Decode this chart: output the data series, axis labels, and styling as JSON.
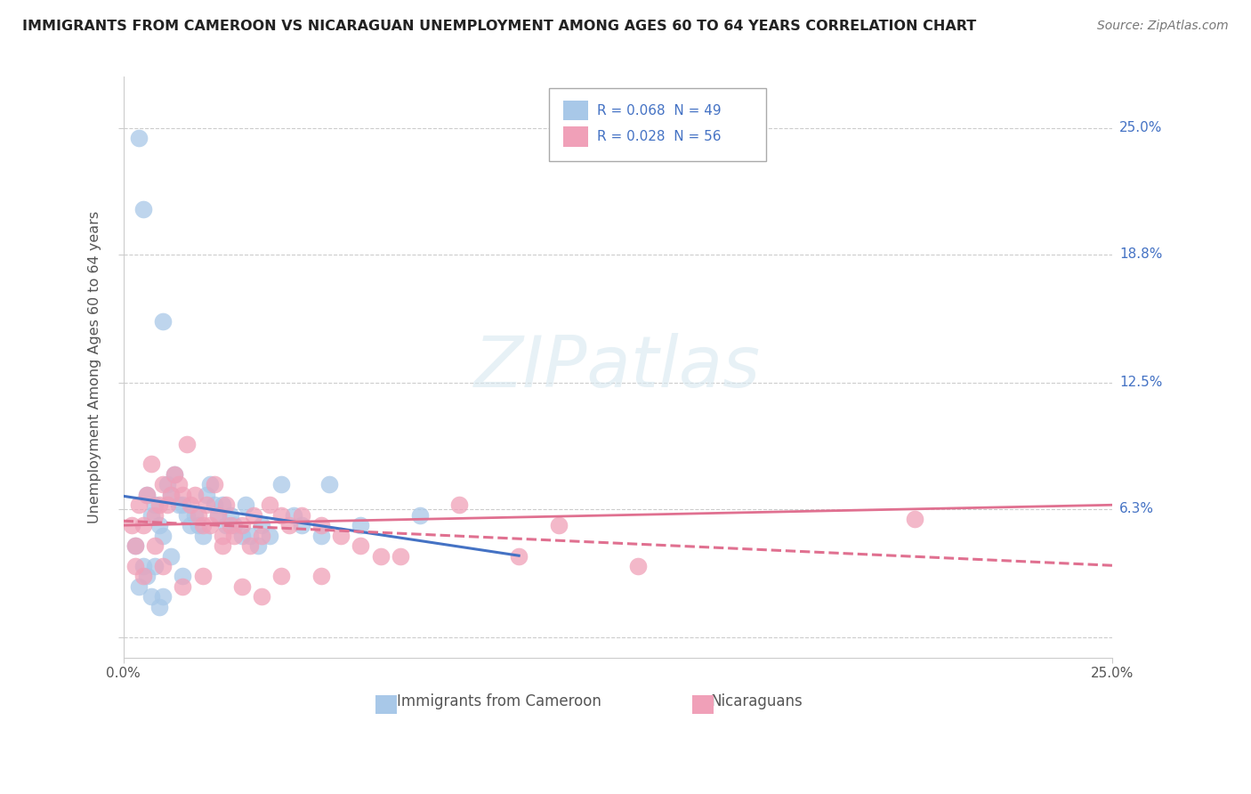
{
  "title": "IMMIGRANTS FROM CAMEROON VS NICARAGUAN UNEMPLOYMENT AMONG AGES 60 TO 64 YEARS CORRELATION CHART",
  "source": "Source: ZipAtlas.com",
  "ylabel": "Unemployment Among Ages 60 to 64 years",
  "ytick_values": [
    0,
    6.3,
    12.5,
    18.8,
    25.0
  ],
  "xlim": [
    0.0,
    25.0
  ],
  "ylim": [
    -1.0,
    27.5
  ],
  "legend_r1": "R = 0.068  N = 49",
  "legend_r2": "R = 0.028  N = 56",
  "color_blue": "#a8c8e8",
  "color_pink": "#f0a0b8",
  "line_blue": "#4472c4",
  "line_pink": "#e07090",
  "watermark": "ZIPatlas",
  "cameroon_x": [
    0.4,
    0.5,
    0.6,
    0.7,
    0.8,
    0.9,
    1.0,
    1.0,
    1.1,
    1.2,
    1.3,
    1.4,
    1.5,
    1.6,
    1.7,
    1.8,
    1.9,
    2.0,
    2.1,
    2.2,
    2.3,
    2.4,
    2.5,
    2.6,
    2.7,
    2.8,
    3.0,
    3.1,
    3.2,
    3.4,
    3.5,
    3.7,
    4.0,
    4.3,
    4.5,
    5.0,
    5.2,
    6.0,
    7.5,
    0.3,
    0.4,
    0.5,
    0.6,
    0.7,
    0.8,
    0.9,
    1.0,
    1.2,
    1.5
  ],
  "cameroon_y": [
    24.5,
    21.0,
    7.0,
    6.0,
    6.5,
    5.5,
    5.0,
    15.5,
    7.5,
    7.0,
    8.0,
    6.5,
    6.5,
    6.0,
    5.5,
    6.0,
    5.5,
    5.0,
    7.0,
    7.5,
    6.5,
    6.0,
    6.5,
    5.5,
    6.0,
    5.5,
    5.0,
    6.5,
    5.0,
    4.5,
    5.5,
    5.0,
    7.5,
    6.0,
    5.5,
    5.0,
    7.5,
    5.5,
    6.0,
    4.5,
    2.5,
    3.5,
    3.0,
    2.0,
    3.5,
    1.5,
    2.0,
    4.0,
    3.0
  ],
  "nicaraguan_x": [
    0.2,
    0.3,
    0.4,
    0.5,
    0.6,
    0.7,
    0.8,
    0.9,
    1.0,
    1.1,
    1.2,
    1.3,
    1.4,
    1.5,
    1.6,
    1.7,
    1.8,
    1.9,
    2.0,
    2.1,
    2.2,
    2.3,
    2.4,
    2.5,
    2.6,
    2.7,
    2.8,
    3.0,
    3.2,
    3.3,
    3.5,
    3.7,
    4.0,
    4.2,
    4.5,
    5.0,
    5.5,
    6.0,
    7.0,
    8.5,
    10.0,
    11.0,
    13.0,
    0.3,
    0.5,
    0.8,
    1.0,
    1.5,
    2.0,
    2.5,
    3.0,
    3.5,
    4.0,
    5.0,
    6.5,
    20.0
  ],
  "nicaraguan_y": [
    5.5,
    4.5,
    6.5,
    5.5,
    7.0,
    8.5,
    6.0,
    6.5,
    7.5,
    6.5,
    7.0,
    8.0,
    7.5,
    7.0,
    9.5,
    6.5,
    7.0,
    6.0,
    5.5,
    6.5,
    5.5,
    7.5,
    6.0,
    5.0,
    6.5,
    5.5,
    5.0,
    5.5,
    4.5,
    6.0,
    5.0,
    6.5,
    6.0,
    5.5,
    6.0,
    5.5,
    5.0,
    4.5,
    4.0,
    6.5,
    4.0,
    5.5,
    3.5,
    3.5,
    3.0,
    4.5,
    3.5,
    2.5,
    3.0,
    4.5,
    2.5,
    2.0,
    3.0,
    3.0,
    4.0,
    5.8
  ]
}
